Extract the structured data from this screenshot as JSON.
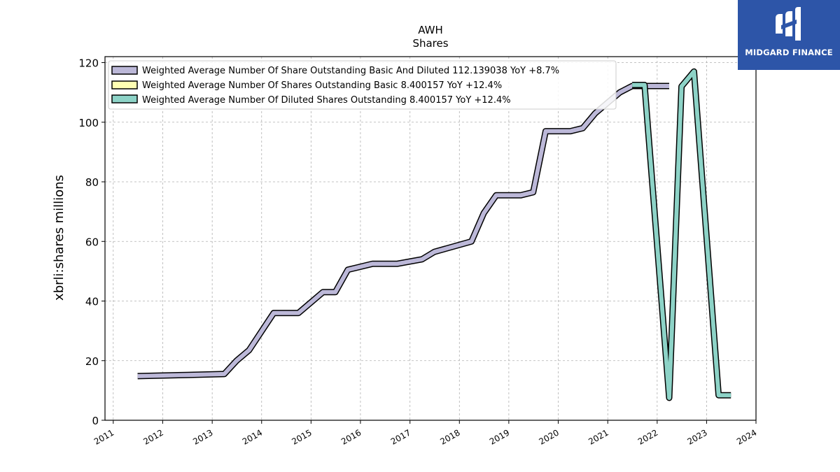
{
  "brand": {
    "name": "MIDGARD FINANCE",
    "color": "#2d55a8"
  },
  "chart_data": {
    "type": "line",
    "title": "AWH",
    "subtitle": "Shares",
    "xlabel": "",
    "ylabel": "xbrli:shares millions",
    "xlim": [
      "2010-11-01",
      "2024-01-01"
    ],
    "ylim": [
      0,
      122
    ],
    "x_ticks": [
      "2011",
      "2012",
      "2013",
      "2014",
      "2015",
      "2016",
      "2017",
      "2018",
      "2019",
      "2020",
      "2021",
      "2022",
      "2023",
      "2024"
    ],
    "y_ticks": [
      0,
      20,
      40,
      60,
      80,
      100,
      120
    ],
    "grid": true,
    "legend_position": "top-left",
    "series": [
      {
        "name": "Weighted Average Number Of Share Outstanding Basic And Diluted",
        "legend_label": "Weighted Average Number Of Share Outstanding Basic And Diluted  112.139038 YoY +8.7%",
        "color": "#bcb8d8",
        "points": [
          [
            "2011-06-30",
            14.8
          ],
          [
            "2012-06-30",
            15.2
          ],
          [
            "2013-03-31",
            15.5
          ],
          [
            "2013-06-30",
            20.0
          ],
          [
            "2013-09-30",
            23.5
          ],
          [
            "2014-03-31",
            36.0
          ],
          [
            "2014-09-30",
            36.0
          ],
          [
            "2015-03-31",
            43.0
          ],
          [
            "2015-06-30",
            43.0
          ],
          [
            "2015-09-30",
            50.5
          ],
          [
            "2016-03-31",
            52.5
          ],
          [
            "2016-09-30",
            52.5
          ],
          [
            "2017-03-31",
            54.0
          ],
          [
            "2017-06-30",
            56.5
          ],
          [
            "2018-03-31",
            60.0
          ],
          [
            "2018-06-30",
            69.5
          ],
          [
            "2018-09-30",
            75.5
          ],
          [
            "2019-03-31",
            75.5
          ],
          [
            "2019-06-30",
            76.5
          ],
          [
            "2019-09-30",
            97.0
          ],
          [
            "2020-03-31",
            97.0
          ],
          [
            "2020-06-30",
            98.0
          ],
          [
            "2020-09-30",
            103.0
          ],
          [
            "2021-03-31",
            110.0
          ],
          [
            "2021-06-30",
            112.139038
          ],
          [
            "2022-03-31",
            112.139038
          ]
        ]
      },
      {
        "name": "Weighted Average Number Of Shares Outstanding Basic",
        "legend_label": "Weighted Average Number Of Shares Outstanding Basic  8.400157 YoY +12.4%",
        "color": "#ffffb3",
        "points": []
      },
      {
        "name": "Weighted Average Number Of Diluted Shares Outstanding",
        "legend_label": "Weighted Average Number Of Diluted Shares Outstanding  8.400157 YoY +12.4%",
        "color": "#8dd3c7",
        "points": [
          [
            "2021-06-30",
            112.5
          ],
          [
            "2021-09-30",
            112.5
          ],
          [
            "2022-03-31",
            7.5
          ],
          [
            "2022-06-30",
            112.0
          ],
          [
            "2022-09-30",
            117.0
          ],
          [
            "2023-03-31",
            8.4
          ],
          [
            "2023-06-30",
            8.400157
          ]
        ]
      }
    ]
  }
}
